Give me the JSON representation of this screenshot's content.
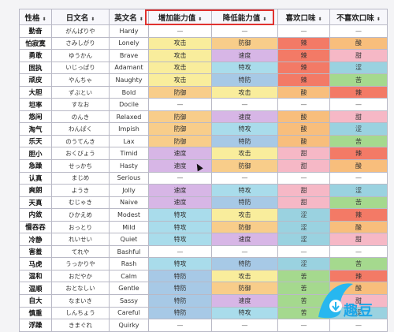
{
  "headers": [
    "性格",
    "日文名",
    "英文名",
    "增加能力值",
    "降低能力值",
    "喜欢口味",
    "不喜欢口味"
  ],
  "sort_glyph": "⬍",
  "colors": {
    "攻击": "#f9ed9c",
    "防御": "#f8cd8a",
    "速度": "#d7b6e6",
    "特攻": "#a9dceb",
    "特防": "#a7c9e6",
    "辣": "#f37a66",
    "酸": "#f8be7c",
    "甜": "#f6b8c6",
    "涩": "#9ad2e0",
    "苦": "#a5d98e",
    "—": "#ffffff"
  },
  "rows": [
    [
      "勤奋",
      "がんばりや",
      "Hardy",
      "—",
      "—",
      "—",
      "—"
    ],
    [
      "怕寂寞",
      "さみしがり",
      "Lonely",
      "攻击",
      "防御",
      "辣",
      "酸"
    ],
    [
      "勇敢",
      "ゆうかん",
      "Brave",
      "攻击",
      "速度",
      "辣",
      "甜"
    ],
    [
      "固执",
      "いじっぱり",
      "Adamant",
      "攻击",
      "特攻",
      "辣",
      "涩"
    ],
    [
      "顽皮",
      "やんちゃ",
      "Naughty",
      "攻击",
      "特防",
      "辣",
      "苦"
    ],
    [
      "大胆",
      "ずぶとい",
      "Bold",
      "防御",
      "攻击",
      "酸",
      "辣"
    ],
    [
      "坦率",
      "すなお",
      "Docile",
      "—",
      "—",
      "—",
      "—"
    ],
    [
      "悠闲",
      "のんき",
      "Relaxed",
      "防御",
      "速度",
      "酸",
      "甜"
    ],
    [
      "淘气",
      "わんぱく",
      "Impish",
      "防御",
      "特攻",
      "酸",
      "涩"
    ],
    [
      "乐天",
      "のうてんき",
      "Lax",
      "防御",
      "特防",
      "酸",
      "苦"
    ],
    [
      "胆小",
      "おくびょう",
      "Timid",
      "速度",
      "攻击",
      "甜",
      "辣"
    ],
    [
      "急躁",
      "せっかち",
      "Hasty",
      "速度",
      "防御",
      "甜",
      "酸"
    ],
    [
      "认真",
      "まじめ",
      "Serious",
      "—",
      "—",
      "—",
      "—"
    ],
    [
      "爽朗",
      "ようき",
      "Jolly",
      "速度",
      "特攻",
      "甜",
      "涩"
    ],
    [
      "天真",
      "むじゃき",
      "Naive",
      "速度",
      "特防",
      "甜",
      "苦"
    ],
    [
      "内敛",
      "ひかえめ",
      "Modest",
      "特攻",
      "攻击",
      "涩",
      "辣"
    ],
    [
      "慢吞吞",
      "おっとり",
      "Mild",
      "特攻",
      "防御",
      "涩",
      "酸"
    ],
    [
      "冷静",
      "れいせい",
      "Quiet",
      "特攻",
      "速度",
      "涩",
      "甜"
    ],
    [
      "害羞",
      "てれや",
      "Bashful",
      "—",
      "—",
      "—",
      "—"
    ],
    [
      "马虎",
      "うっかりや",
      "Rash",
      "特攻",
      "特防",
      "涩",
      "苦"
    ],
    [
      "温和",
      "おだやか",
      "Calm",
      "特防",
      "攻击",
      "苦",
      "辣"
    ],
    [
      "温顺",
      "おとなしい",
      "Gentle",
      "特防",
      "防御",
      "苦",
      "酸"
    ],
    [
      "自大",
      "なまいき",
      "Sassy",
      "特防",
      "速度",
      "苦",
      "甜"
    ],
    [
      "慎重",
      "しんちょう",
      "Careful",
      "特防",
      "特攻",
      "苦",
      "涩"
    ],
    [
      "浮躁",
      "きまぐれ",
      "Quirky",
      "—",
      "—",
      "—",
      "—"
    ]
  ],
  "watermark": "趣豆"
}
